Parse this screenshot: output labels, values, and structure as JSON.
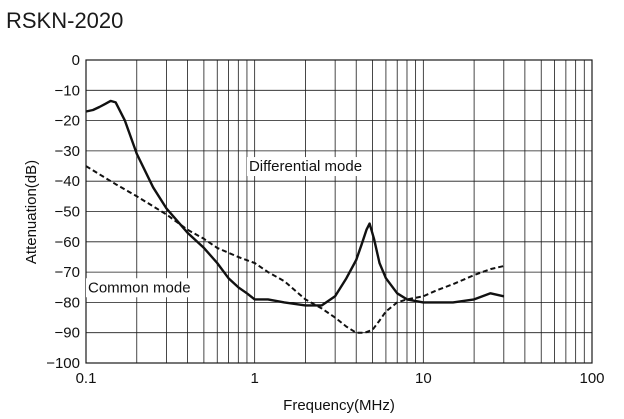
{
  "chart_data": {
    "type": "line",
    "title": "RSKN-2020",
    "xlabel": "Frequency(MHz)",
    "ylabel": "Attenuation(dB)",
    "xscale": "log",
    "xlim": [
      0.1,
      100
    ],
    "ylim": [
      -100,
      0
    ],
    "grid": true,
    "x_ticks": [
      "0.1",
      "1",
      "10",
      "100"
    ],
    "y_ticks": [
      "0",
      "−10",
      "−20",
      "−30",
      "−40",
      "−50",
      "−60",
      "−70",
      "−80",
      "−90",
      "−100"
    ],
    "y_tick_values": [
      0,
      -10,
      -20,
      -30,
      -40,
      -50,
      -60,
      -70,
      -80,
      -90,
      -100
    ],
    "annotations": [
      {
        "text": "Differential mode",
        "x": 0.9,
        "y": -35
      },
      {
        "text": "Common mode",
        "x": 0.1,
        "y": -75
      }
    ],
    "series": [
      {
        "name": "Differential mode",
        "style": "solid",
        "color": "#111111",
        "x": [
          0.1,
          0.11,
          0.12,
          0.13,
          0.14,
          0.15,
          0.17,
          0.2,
          0.25,
          0.3,
          0.4,
          0.5,
          0.6,
          0.7,
          0.8,
          0.9,
          1.0,
          1.2,
          1.5,
          2,
          2.5,
          3,
          3.5,
          4,
          4.3,
          4.6,
          4.8,
          5.1,
          5.5,
          6,
          7,
          8,
          10,
          12,
          15,
          20,
          25,
          30
        ],
        "y": [
          -17,
          -16.5,
          -15.5,
          -14.5,
          -13.5,
          -14,
          -20,
          -31,
          -42,
          -49,
          -57,
          -62,
          -67,
          -72,
          -75,
          -77,
          -79,
          -79,
          -80,
          -81,
          -81,
          -78,
          -72,
          -66,
          -61,
          -56,
          -54,
          -59,
          -67,
          -72,
          -77,
          -79,
          -80,
          -80,
          -80,
          -79,
          -77,
          -78
        ]
      },
      {
        "name": "Common mode",
        "style": "dashed",
        "color": "#111111",
        "x": [
          0.1,
          0.15,
          0.2,
          0.3,
          0.4,
          0.5,
          0.6,
          0.8,
          1.0,
          1.2,
          1.5,
          2,
          2.5,
          3,
          3.5,
          4,
          4.5,
          5,
          5.5,
          6,
          7,
          8,
          10,
          12,
          15,
          20,
          25,
          30
        ],
        "y": [
          -35,
          -41,
          -45,
          -51,
          -56,
          -59,
          -62,
          -65,
          -67,
          -70,
          -73,
          -79,
          -82,
          -85,
          -88,
          -90,
          -90,
          -89,
          -86,
          -83,
          -80,
          -79,
          -78,
          -76,
          -74,
          -71,
          -69,
          -68
        ]
      }
    ]
  }
}
